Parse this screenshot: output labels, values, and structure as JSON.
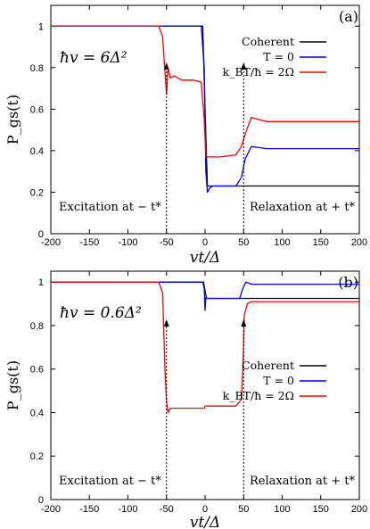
{
  "chart_data": [
    {
      "type": "line",
      "panel_label": "(a)",
      "equation": "ħv = 6Δ²",
      "xlabel": "vt/Δ",
      "ylabel": "P_gs(t)",
      "xlim": [
        -200,
        200
      ],
      "ylim": [
        0,
        1.1
      ],
      "xticks": [
        "-200",
        "-150",
        "-100",
        "-50",
        "0",
        "50",
        "100",
        "150",
        "200"
      ],
      "yticks": [
        "0",
        "0.2",
        "0.4",
        "0.6",
        "0.8",
        "1"
      ],
      "legend_position": "top-right",
      "annotations": [
        "Excitation at  − t*",
        "Relaxation at + t*"
      ],
      "series": [
        {
          "name": "Coherent",
          "color": "#000000",
          "x": [
            -200,
            -3,
            0,
            3,
            6,
            200
          ],
          "y": [
            1.0,
            1.0,
            0.6,
            0.23,
            0.23,
            0.23
          ]
        },
        {
          "name": "T = 0",
          "color": "#0000ff",
          "x": [
            -200,
            -5,
            -1,
            1,
            3,
            6,
            10,
            40,
            47,
            52,
            60,
            80,
            120,
            200
          ],
          "y": [
            1.0,
            1.0,
            0.8,
            0.3,
            0.2,
            0.22,
            0.23,
            0.23,
            0.27,
            0.36,
            0.42,
            0.41,
            0.41,
            0.41
          ]
        },
        {
          "name": "k_BT/ħ = 2Ω",
          "color": "#ff0000",
          "x": [
            -200,
            -60,
            -55,
            -52,
            -50,
            -48,
            -45,
            -40,
            -30,
            -15,
            -5,
            -1,
            1,
            5,
            20,
            40,
            47,
            52,
            60,
            80,
            120,
            200
          ],
          "y": [
            1.0,
            1.0,
            0.95,
            0.78,
            0.67,
            0.8,
            0.75,
            0.76,
            0.74,
            0.74,
            0.73,
            0.55,
            0.37,
            0.37,
            0.37,
            0.38,
            0.42,
            0.48,
            0.56,
            0.54,
            0.54,
            0.54
          ]
        }
      ]
    },
    {
      "type": "line",
      "panel_label": "(b)",
      "equation": "ħv = 0.6Δ²",
      "xlabel": "vt/Δ",
      "ylabel": "P_gs(t)",
      "xlim": [
        -200,
        200
      ],
      "ylim": [
        0,
        1.05
      ],
      "xticks": [
        "-200",
        "-150",
        "-100",
        "-50",
        "0",
        "50",
        "100",
        "150",
        "200"
      ],
      "yticks": [
        "0",
        "0.2",
        "0.4",
        "0.6",
        "0.8",
        "1"
      ],
      "legend_position": "center-right",
      "annotations": [
        "Excitation at  − t*",
        "Relaxation at + t*"
      ],
      "series": [
        {
          "name": "Coherent",
          "color": "#000000",
          "x": [
            -200,
            -2,
            0,
            2,
            200
          ],
          "y": [
            1.0,
            1.0,
            0.96,
            0.925,
            0.925
          ]
        },
        {
          "name": "T = 0",
          "color": "#0000ff",
          "x": [
            -200,
            -3,
            -1,
            0,
            1,
            3,
            10,
            45,
            48,
            50,
            53,
            60,
            200
          ],
          "y": [
            1.0,
            1.0,
            0.97,
            0.87,
            0.93,
            0.925,
            0.925,
            0.925,
            0.96,
            0.98,
            1.0,
            0.99,
            0.99
          ]
        },
        {
          "name": "k_BT/ħ = 2Ω",
          "color": "#ff0000",
          "x": [
            -200,
            -60,
            -55,
            -52,
            -50,
            -48,
            -45,
            -40,
            -20,
            -1,
            0,
            20,
            40,
            47,
            49,
            51,
            55,
            60,
            200
          ],
          "y": [
            1.0,
            1.0,
            0.95,
            0.6,
            0.45,
            0.4,
            0.42,
            0.42,
            0.42,
            0.42,
            0.43,
            0.43,
            0.43,
            0.46,
            0.6,
            0.85,
            0.9,
            0.91,
            0.91
          ]
        }
      ]
    }
  ]
}
